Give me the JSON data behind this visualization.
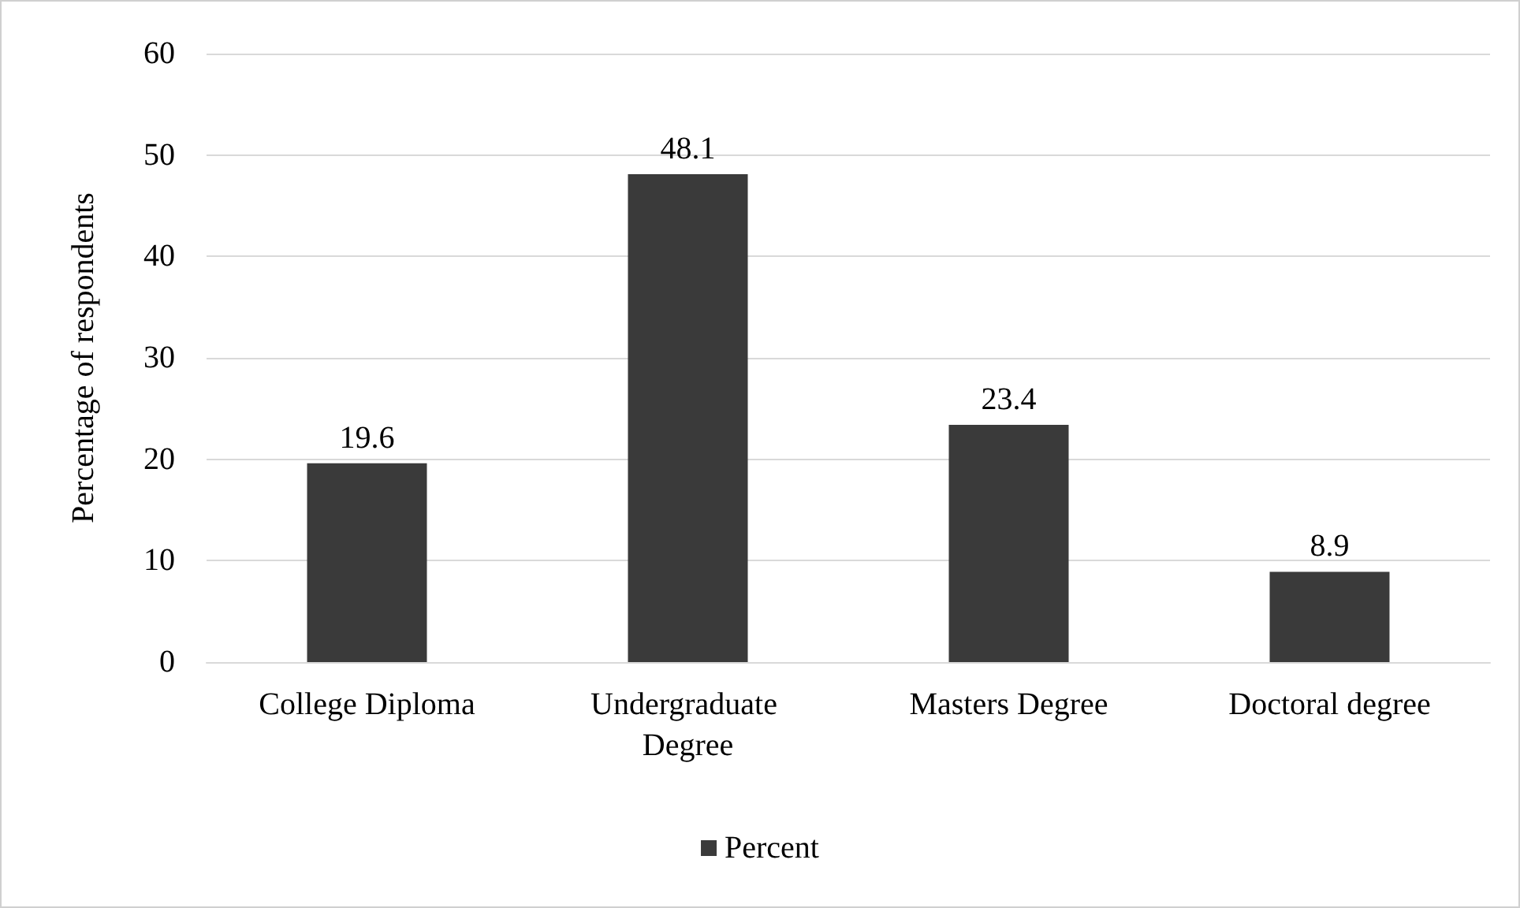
{
  "chart_data": {
    "type": "bar",
    "ylabel": "Percentage of respondents",
    "categories": [
      "College Diploma",
      "Undergraduate Degree",
      "Masters Degree",
      "Doctoral degree"
    ],
    "series": [
      {
        "name": "Percent",
        "color": "#3a3a3a",
        "values": [
          19.6,
          48.1,
          23.4,
          8.9
        ]
      }
    ],
    "ylim": [
      0,
      60
    ],
    "yticks": [
      0,
      10,
      20,
      30,
      40,
      50,
      60
    ],
    "grid": "y",
    "legend": "bottom",
    "data_labels": true
  }
}
